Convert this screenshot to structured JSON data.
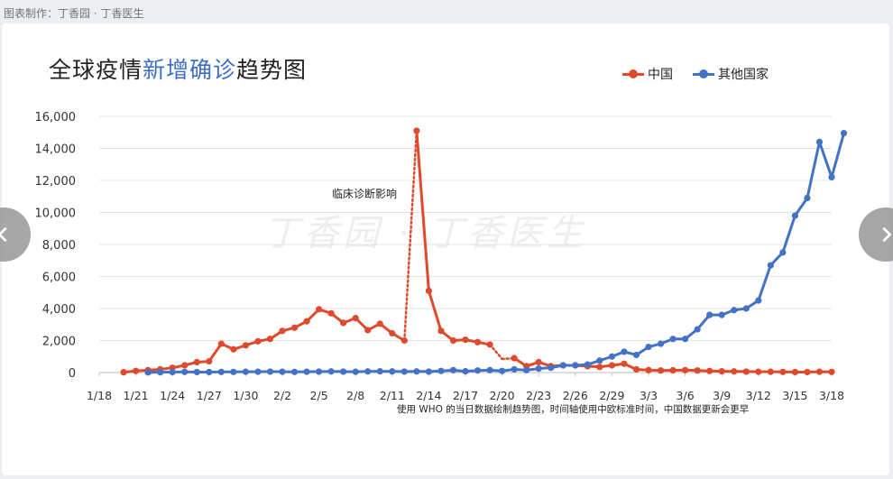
{
  "credit": "图表制作：丁香园 · 丁香医生",
  "watermark": "丁香园 · 丁香医生",
  "title_part1": "全球疫情",
  "title_part2": "新增确诊",
  "title_part3": "趋势图",
  "footnote": "使用 WHO 的当日数据绘制趋势图，时间轴使用中欧标准时间，中国数据更新会更早",
  "chart_data": {
    "type": "line",
    "title": "全球疫情新增确诊趋势图",
    "xlabel": "",
    "ylabel": "",
    "x_tick_labels": [
      "1/18",
      "1/21",
      "1/24",
      "1/27",
      "1/30",
      "2/2",
      "2/5",
      "2/8",
      "2/11",
      "2/14",
      "2/17",
      "2/20",
      "2/23",
      "2/26",
      "2/29",
      "3/3",
      "3/6",
      "3/9",
      "3/12",
      "3/15",
      "3/18"
    ],
    "x_start": 18,
    "y_ticks": [
      "0",
      "2,000",
      "4,000",
      "6,000",
      "8,000",
      "10,000",
      "12,000",
      "14,000",
      "16,000"
    ],
    "ylim": [
      0,
      16000
    ],
    "legend_position": "top-right",
    "annotation": "临床诊断影响",
    "series": [
      {
        "name": "中国",
        "color": "#e04a2c",
        "start_day": 20,
        "values": [
          20,
          100,
          150,
          200,
          300,
          450,
          650,
          700,
          1800,
          1450,
          1700,
          1950,
          2100,
          2600,
          2800,
          3200,
          3950,
          3700,
          3100,
          3400,
          2650,
          3050,
          2450,
          2000,
          15100,
          5100,
          2600,
          2000,
          2050,
          1900,
          1750,
          850,
          900,
          400,
          650,
          400,
          450,
          450,
          400,
          350,
          450,
          550,
          200,
          150,
          130,
          140,
          150,
          130,
          100,
          80,
          70,
          60,
          50,
          50,
          40,
          30,
          30,
          50,
          40
        ]
      },
      {
        "name": "其他国家",
        "color": "#4472c4",
        "start_day": 22,
        "values": [
          10,
          20,
          30,
          40,
          30,
          30,
          40,
          40,
          50,
          50,
          60,
          50,
          40,
          50,
          60,
          70,
          60,
          50,
          70,
          80,
          70,
          60,
          70,
          60,
          100,
          150,
          80,
          130,
          150,
          100,
          200,
          150,
          250,
          300,
          450,
          450,
          500,
          750,
          1000,
          1300,
          1100,
          1600,
          1800,
          2100,
          2100,
          2700,
          3600,
          3600,
          3900,
          4000,
          4500,
          6700,
          7500,
          9800,
          10900,
          14400,
          12200,
          14950
        ]
      }
    ],
    "dotted_segments": [
      {
        "series": 0,
        "from_index": 23,
        "to_index": 24
      },
      {
        "series": 0,
        "from_index": 30,
        "to_index": 32
      }
    ]
  }
}
